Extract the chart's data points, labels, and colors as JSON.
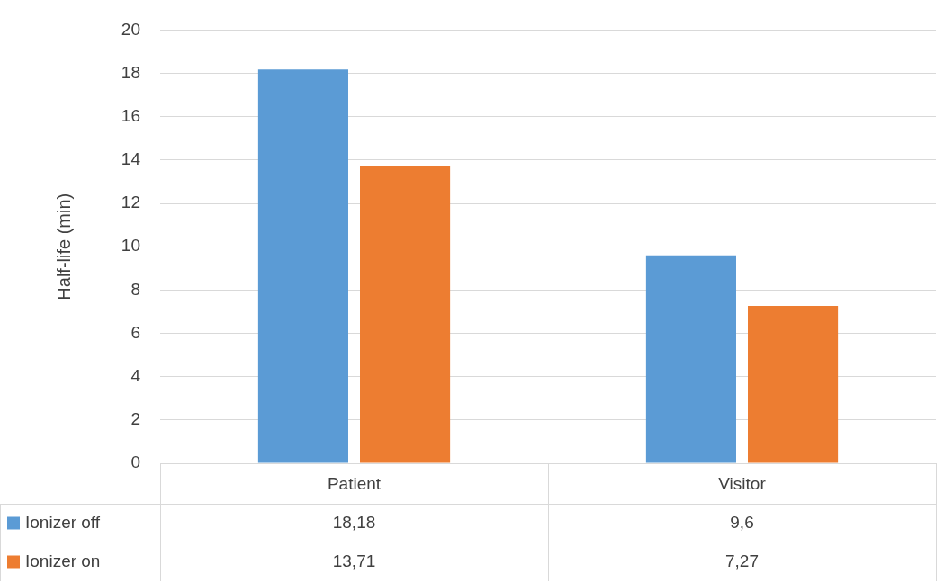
{
  "chart_data": {
    "type": "bar",
    "ylabel": "Half-life (min)",
    "categories": [
      "Patient",
      "Visitor"
    ],
    "series": [
      {
        "name": "Ionizer off",
        "color": "#5b9bd5",
        "values": [
          18.18,
          9.6
        ],
        "value_labels": [
          "18,18",
          "9,6"
        ]
      },
      {
        "name": "Ionizer on",
        "color": "#ed7d31",
        "values": [
          13.71,
          7.27
        ],
        "value_labels": [
          "13,71",
          "7,27"
        ]
      }
    ],
    "ylim": [
      0,
      20
    ],
    "yticks": [
      0,
      2,
      4,
      6,
      8,
      10,
      12,
      14,
      16,
      18,
      20
    ],
    "grid": "y",
    "legend": "bottom"
  }
}
